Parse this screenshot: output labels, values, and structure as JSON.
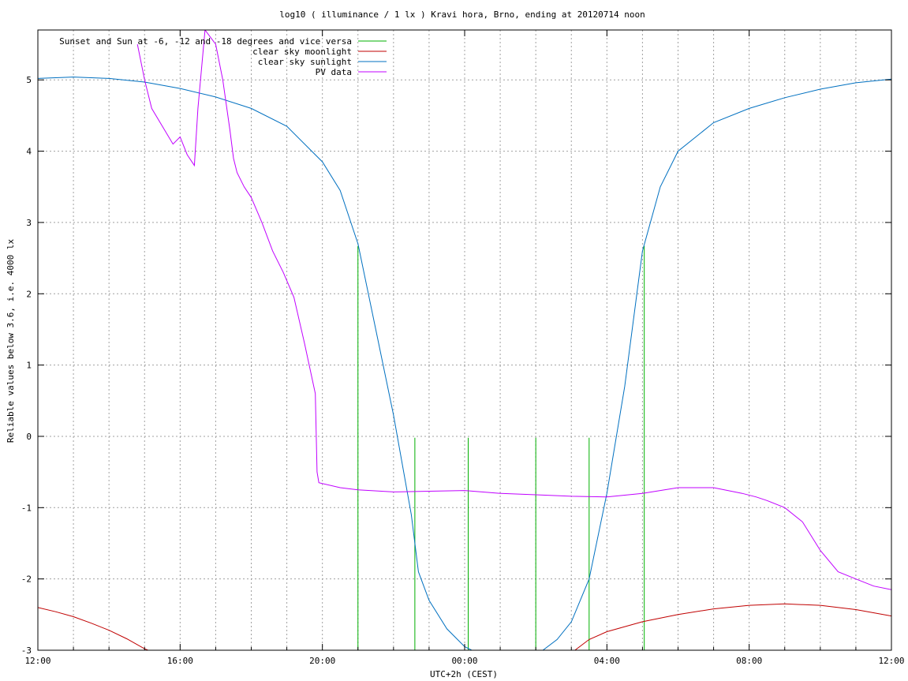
{
  "chart_data": {
    "type": "line",
    "title": "log10 ( illuminance / 1 lx ) Kravi hora, Brno, ending at 20120714 noon",
    "xlabel": "UTC+2h (CEST)",
    "ylabel": "Reliable values below 3.6, i.e. 4000 lx",
    "xlim": [
      12,
      36
    ],
    "ylim": [
      -3,
      5.7
    ],
    "x_ticks": [
      {
        "x": 12,
        "label": "12:00"
      },
      {
        "x": 16,
        "label": "16:00"
      },
      {
        "x": 20,
        "label": "20:00"
      },
      {
        "x": 24,
        "label": "00:00"
      },
      {
        "x": 28,
        "label": "04:00"
      },
      {
        "x": 32,
        "label": "08:00"
      },
      {
        "x": 36,
        "label": "12:00"
      }
    ],
    "y_ticks": [
      {
        "y": -3,
        "label": "-3"
      },
      {
        "y": -2,
        "label": "-2"
      },
      {
        "y": -1,
        "label": "-1"
      },
      {
        "y": 0,
        "label": "0"
      },
      {
        "y": 1,
        "label": "1"
      },
      {
        "y": 2,
        "label": "2"
      },
      {
        "y": 3,
        "label": "3"
      },
      {
        "y": 4,
        "label": "4"
      },
      {
        "y": 5,
        "label": "5"
      }
    ],
    "grid": true,
    "legend_position": "top-left",
    "series": [
      {
        "name": "Sunset and Sun at -6, -12 and -18 degrees and vice versa",
        "color": "#00b000",
        "style": "impulses",
        "points": [
          [
            21.0,
            2.67
          ],
          [
            22.6,
            -0.02
          ],
          [
            24.1,
            -0.02
          ],
          [
            26.0,
            -0.02
          ],
          [
            27.5,
            -0.02
          ],
          [
            29.05,
            2.67
          ]
        ]
      },
      {
        "name": "clear sky moonlight",
        "color": "#c00000",
        "points": [
          [
            12.0,
            -2.4
          ],
          [
            12.5,
            -2.46
          ],
          [
            13.0,
            -2.53
          ],
          [
            13.5,
            -2.62
          ],
          [
            14.0,
            -2.72
          ],
          [
            14.5,
            -2.84
          ],
          [
            15.0,
            -2.98
          ],
          [
            15.1,
            -3.0
          ],
          [
            27.1,
            -3.0
          ],
          [
            27.5,
            -2.85
          ],
          [
            28.0,
            -2.74
          ],
          [
            29.0,
            -2.6
          ],
          [
            30.0,
            -2.5
          ],
          [
            31.0,
            -2.42
          ],
          [
            32.0,
            -2.37
          ],
          [
            33.0,
            -2.35
          ],
          [
            34.0,
            -2.37
          ],
          [
            35.0,
            -2.43
          ],
          [
            36.0,
            -2.52
          ]
        ]
      },
      {
        "name": "clear sky sunlight",
        "color": "#0070c0",
        "points": [
          [
            12.0,
            5.02
          ],
          [
            13.0,
            5.04
          ],
          [
            14.0,
            5.02
          ],
          [
            15.0,
            4.97
          ],
          [
            16.0,
            4.88
          ],
          [
            17.0,
            4.76
          ],
          [
            18.0,
            4.6
          ],
          [
            19.0,
            4.35
          ],
          [
            20.0,
            3.85
          ],
          [
            20.5,
            3.45
          ],
          [
            21.0,
            2.7
          ],
          [
            21.5,
            1.5
          ],
          [
            22.0,
            0.3
          ],
          [
            22.5,
            -1.1
          ],
          [
            22.7,
            -1.9
          ],
          [
            23.0,
            -2.3
          ],
          [
            23.5,
            -2.7
          ],
          [
            24.0,
            -2.95
          ],
          [
            24.2,
            -3.0
          ],
          [
            26.2,
            -3.0
          ],
          [
            26.6,
            -2.85
          ],
          [
            27.0,
            -2.6
          ],
          [
            27.5,
            -2.0
          ],
          [
            28.0,
            -0.8
          ],
          [
            28.5,
            0.7
          ],
          [
            29.0,
            2.6
          ],
          [
            29.5,
            3.5
          ],
          [
            30.0,
            4.0
          ],
          [
            31.0,
            4.4
          ],
          [
            32.0,
            4.6
          ],
          [
            33.0,
            4.75
          ],
          [
            34.0,
            4.87
          ],
          [
            35.0,
            4.96
          ],
          [
            36.0,
            5.01
          ]
        ]
      },
      {
        "name": "PV data",
        "color": "#c000ff",
        "points": [
          [
            14.8,
            5.5
          ],
          [
            15.0,
            5.0
          ],
          [
            15.2,
            4.6
          ],
          [
            15.5,
            4.35
          ],
          [
            15.8,
            4.1
          ],
          [
            16.0,
            4.2
          ],
          [
            16.2,
            3.95
          ],
          [
            16.4,
            3.8
          ],
          [
            16.5,
            4.6
          ],
          [
            16.7,
            5.7
          ],
          [
            17.0,
            5.5
          ],
          [
            17.2,
            5.0
          ],
          [
            17.4,
            4.3
          ],
          [
            17.5,
            3.9
          ],
          [
            17.6,
            3.7
          ],
          [
            17.8,
            3.5
          ],
          [
            18.0,
            3.35
          ],
          [
            18.3,
            3.0
          ],
          [
            18.6,
            2.6
          ],
          [
            18.9,
            2.3
          ],
          [
            19.2,
            1.95
          ],
          [
            19.5,
            1.3
          ],
          [
            19.8,
            0.6
          ],
          [
            19.85,
            -0.5
          ],
          [
            19.9,
            -0.65
          ],
          [
            20.5,
            -0.72
          ],
          [
            21.0,
            -0.75
          ],
          [
            22.0,
            -0.78
          ],
          [
            23.0,
            -0.77
          ],
          [
            24.0,
            -0.76
          ],
          [
            25.0,
            -0.8
          ],
          [
            26.0,
            -0.82
          ],
          [
            27.0,
            -0.84
          ],
          [
            28.0,
            -0.85
          ],
          [
            29.0,
            -0.8
          ],
          [
            30.0,
            -0.72
          ],
          [
            31.0,
            -0.72
          ],
          [
            31.8,
            -0.8
          ],
          [
            32.2,
            -0.85
          ],
          [
            32.5,
            -0.9
          ],
          [
            33.0,
            -1.0
          ],
          [
            33.5,
            -1.2
          ],
          [
            34.0,
            -1.6
          ],
          [
            34.5,
            -1.9
          ],
          [
            35.0,
            -2.0
          ],
          [
            35.5,
            -2.1
          ],
          [
            36.0,
            -2.15
          ]
        ]
      }
    ]
  }
}
